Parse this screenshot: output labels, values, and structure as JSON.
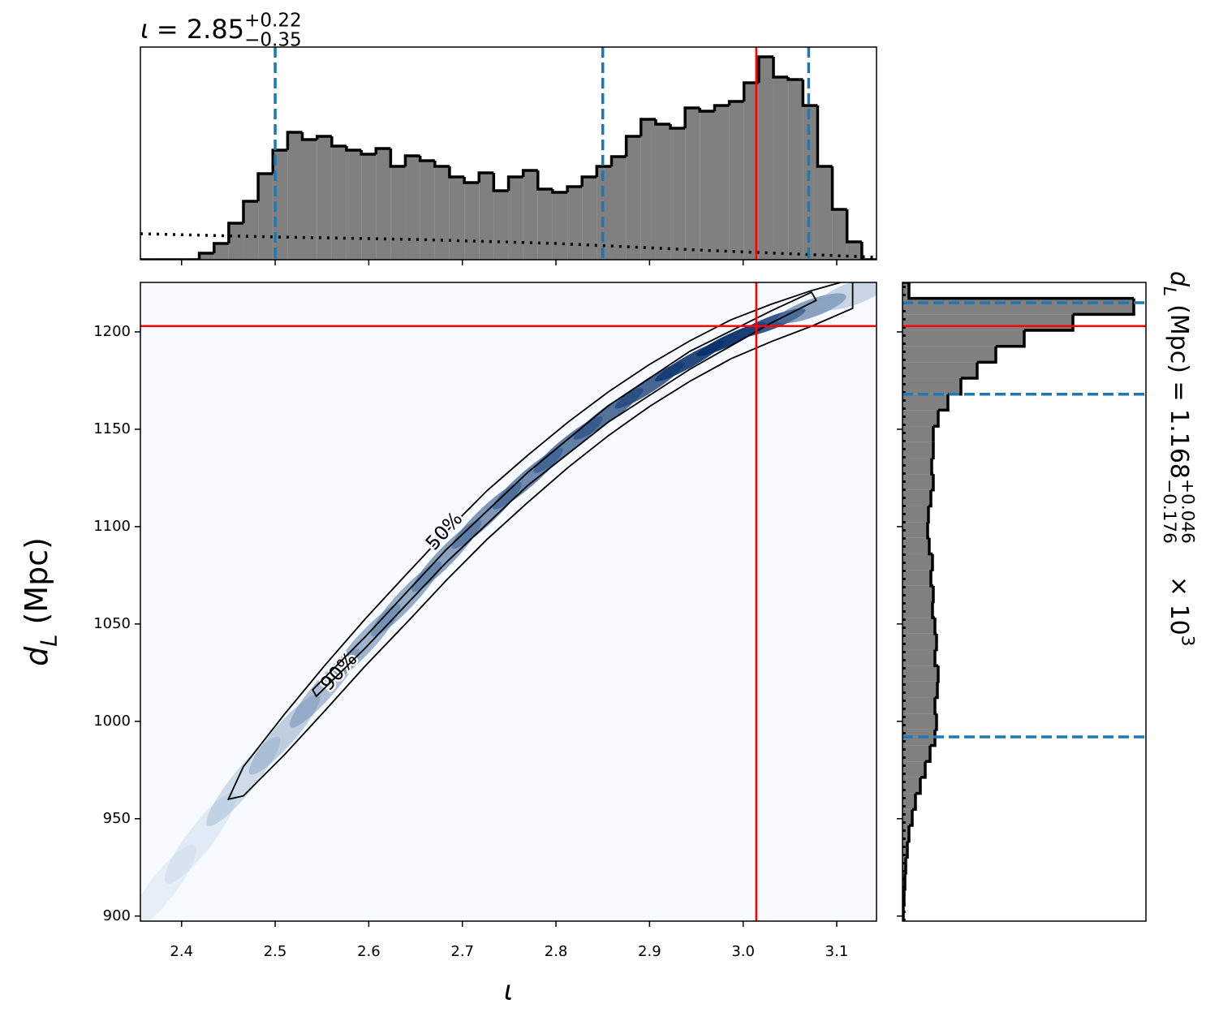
{
  "chart_data": [
    {
      "type": "histogram",
      "orientation": "vertical",
      "title": {
        "symbol": "ι",
        "equals_value": "= 2.85",
        "upper": "+0.22",
        "lower": "−0.35"
      },
      "bins": [
        2.356,
        2.3717,
        2.3875,
        2.4032,
        2.4189,
        2.4347,
        2.4504,
        2.4661,
        2.4818,
        2.4976,
        2.5133,
        2.529,
        2.5448,
        2.5605,
        2.5762,
        2.592,
        2.6077,
        2.6234,
        2.6391,
        2.6549,
        2.6706,
        2.6863,
        2.7021,
        2.7178,
        2.7335,
        2.7493,
        2.765,
        2.7807,
        2.7964,
        2.8122,
        2.8279,
        2.8436,
        2.8594,
        2.8751,
        2.8908,
        2.9066,
        2.9223,
        2.938,
        2.9537,
        2.9695,
        2.9852,
        3.0009,
        3.0167,
        3.0324,
        3.0481,
        3.0639,
        3.0796,
        3.0953,
        3.111,
        3.1268,
        3.1425
      ],
      "values": [
        0,
        0,
        0,
        0,
        8,
        20,
        45,
        72,
        106,
        135,
        157,
        148,
        152,
        140,
        135,
        130,
        137,
        115,
        128,
        122,
        115,
        102,
        95,
        107,
        85,
        102,
        110,
        87,
        83,
        90,
        102,
        115,
        127,
        152,
        173,
        167,
        162,
        187,
        183,
        190,
        195,
        218,
        250,
        225,
        222,
        190,
        115,
        62,
        22,
        0
      ],
      "color": "#808080",
      "edgecolor": "#000000",
      "xlim": [
        2.356,
        3.1425
      ],
      "ylim": [
        0,
        262
      ],
      "xticks": [
        2.4,
        2.5,
        2.6,
        2.7,
        2.8,
        2.9,
        {
          "value": 3.0,
          "label": "3.0"
        },
        3.1
      ],
      "prior": {
        "x": [
          2.356,
          2.5,
          2.65,
          2.8,
          2.95,
          3.1425
        ],
        "values": [
          32,
          28,
          25,
          20,
          12,
          3
        ],
        "color": "#000000"
      },
      "quantiles": [
        2.5,
        2.85,
        3.07
      ],
      "quantile_color": "#1f77b4",
      "truth": 3.014,
      "truth_color": "#ff0000"
    },
    {
      "type": "density",
      "xlabel": "ι",
      "ylabel": {
        "symbol": "d",
        "sub": "L",
        "unit": "(Mpc)"
      },
      "xlim": [
        2.356,
        3.1425
      ],
      "ylim": [
        897.4,
        1225.4
      ],
      "xticks": [
        2.4,
        2.5,
        2.6,
        2.7,
        2.8,
        2.9,
        {
          "value": 3.0,
          "label": "3.0"
        },
        3.1
      ],
      "yticks": [
        900,
        950,
        1000,
        1050,
        1100,
        1150,
        1200
      ],
      "background": "#f7fbff",
      "low_color": "#c6dbef",
      "high_color": "#08306b",
      "ridge": {
        "x": [
          2.38,
          2.42,
          2.466,
          2.51,
          2.553,
          2.596,
          2.64,
          2.683,
          2.726,
          2.77,
          2.813,
          2.856,
          2.9,
          2.943,
          2.987,
          3.03,
          3.073,
          3.117
        ],
        "y": [
          915,
          940,
          969.2,
          993.3,
          1017.1,
          1040.4,
          1062.9,
          1085.0,
          1105.8,
          1124.6,
          1142.1,
          1157.9,
          1172.5,
          1185.0,
          1196.2,
          1204.6,
          1212.1,
          1219.6
        ],
        "density": [
          0.05,
          0.1,
          0.25,
          0.35,
          0.45,
          0.5,
          0.55,
          0.6,
          0.65,
          0.7,
          0.75,
          0.8,
          0.85,
          0.95,
          1.0,
          0.9,
          0.6,
          0.3
        ]
      },
      "contours": [
        {
          "label": "90%",
          "label_x": 2.5685,
          "label_y": 1025.4,
          "color": "#000000",
          "x": [
            2.45,
            2.466,
            2.51,
            2.553,
            2.596,
            2.64,
            2.683,
            2.726,
            2.77,
            2.813,
            2.856,
            2.9,
            2.943,
            2.987,
            3.03,
            3.073,
            3.117,
            3.117,
            3.073,
            3.03,
            2.987,
            2.943,
            2.9,
            2.856,
            2.813,
            2.77,
            2.726,
            2.683,
            2.64,
            2.596,
            2.553,
            2.51,
            2.466
          ],
          "y": [
            960.0,
            976.7,
            1003.7,
            1028.7,
            1052.5,
            1075.4,
            1097.5,
            1118.3,
            1136.7,
            1153.7,
            1169.2,
            1183.3,
            1195.4,
            1206.2,
            1214.2,
            1221.2,
            1227.1,
            1212.1,
            1202.9,
            1195.0,
            1186.2,
            1174.6,
            1161.7,
            1146.7,
            1130.4,
            1112.5,
            1093.3,
            1072.5,
            1050.4,
            1028.3,
            1005.4,
            982.9,
            961.7
          ]
        },
        {
          "label": "50%",
          "label_x": 2.681,
          "label_y": 1097.5,
          "color": "#000000",
          "x": [
            2.54,
            2.596,
            2.683,
            2.77,
            2.856,
            2.943,
            3.03,
            3.073,
            3.078,
            3.03,
            2.943,
            2.856,
            2.77,
            2.683,
            2.596,
            2.544
          ],
          "y": [
            1016.2,
            1043.3,
            1088.3,
            1127.9,
            1162.1,
            1190.0,
            1210.8,
            1220.4,
            1216.2,
            1204.6,
            1180.8,
            1153.7,
            1121.2,
            1081.7,
            1037.5,
            1012.9
          ]
        }
      ],
      "truth_x": 3.014,
      "truth_y": 1203,
      "truth_color": "#ff0000"
    },
    {
      "type": "histogram",
      "orientation": "horizontal",
      "title": {
        "symbol": "d",
        "symbol_sub": "L",
        "unit_value": "(Mpc) = 1.168",
        "upper": "+0.046",
        "lower": "−0.176",
        "scale": "× 10",
        "scale_exp": "3"
      },
      "bins": [
        897.4,
        905.6,
        913.8,
        922.0,
        930.2,
        938.4,
        946.6,
        954.8,
        963.0,
        971.2,
        979.4,
        987.6,
        995.8,
        1004.0,
        1012.2,
        1020.4,
        1028.6,
        1036.8,
        1045.0,
        1053.2,
        1061.4,
        1069.6,
        1077.8,
        1086.0,
        1094.2,
        1102.4,
        1110.6,
        1118.8,
        1127.0,
        1135.2,
        1143.4,
        1151.6,
        1159.8,
        1168.0,
        1176.2,
        1184.4,
        1192.6,
        1200.8,
        1209.0,
        1217.2,
        1225.4
      ],
      "values": [
        1,
        2,
        3,
        4,
        6,
        8,
        12,
        16,
        22,
        28,
        34,
        40,
        42,
        40,
        43,
        44,
        40,
        42,
        40,
        37,
        38,
        35,
        37,
        33,
        31,
        32,
        35,
        38,
        36,
        38,
        38,
        44,
        56,
        72,
        92,
        115,
        150,
        210,
        285,
        8
      ],
      "color": "#808080",
      "edgecolor": "#000000",
      "xlim": [
        0,
        300
      ],
      "ylim": [
        897.4,
        1225.4
      ],
      "yticks": [
        900,
        950,
        1000,
        1050,
        1100,
        1150,
        1200
      ],
      "prior": {
        "y": [
          897.4,
          1225.4
        ],
        "values": [
          2,
          2
        ],
        "color": "#000000"
      },
      "quantiles": [
        992,
        1168,
        1215
      ],
      "quantile_color": "#1f77b4",
      "truth": 1203,
      "truth_color": "#ff0000"
    }
  ]
}
